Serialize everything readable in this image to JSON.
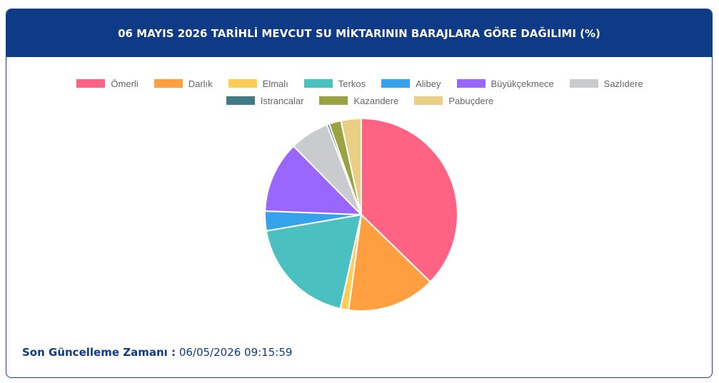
{
  "chart_data": {
    "type": "pie",
    "title": "06 MAYIS 2026 TARİHLİ MEVCUT SU MİKTARININ BARAJLARA GÖRE DAĞILIMI (%)",
    "categories": [
      "Ömerli",
      "Darlık",
      "Elmalı",
      "Terkos",
      "Alibey",
      "Büyükçekmece",
      "Sazlıdere",
      "Istrancalar",
      "Kazandere",
      "Pabuçdere"
    ],
    "values": [
      37.3,
      14.8,
      1.4,
      18.8,
      3.3,
      12,
      6.6,
      0.4,
      2,
      3.4
    ],
    "colors": [
      "#ff6384",
      "#ff9f40",
      "#ffcd56",
      "#4bc0c0",
      "#36a2eb",
      "#9966ff",
      "#c9cbcf",
      "#3e7b84",
      "#9aa33f",
      "#e8cf84"
    ],
    "legend": "top"
  },
  "footer": {
    "label": "Son Güncelleme Zamanı :",
    "value": "06/05/2026 09:15:59"
  }
}
